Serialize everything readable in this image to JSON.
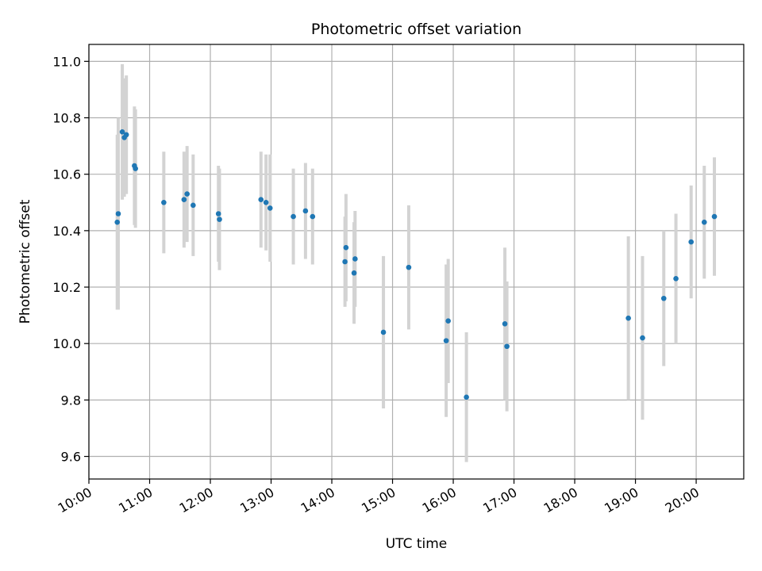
{
  "chart_data": {
    "type": "scatter",
    "title": "Photometric offset variation",
    "xlabel": "UTC time",
    "ylabel": "Photometric offset",
    "xlim": [
      "10:00",
      "20:47"
    ],
    "ylim": [
      9.52,
      11.06
    ],
    "grid": true,
    "legend": "none",
    "x_ticks": [
      "10:00",
      "11:00",
      "12:00",
      "13:00",
      "14:00",
      "15:00",
      "16:00",
      "17:00",
      "18:00",
      "19:00",
      "20:00"
    ],
    "y_ticks": [
      "9.6",
      "9.8",
      "10.0",
      "10.2",
      "10.4",
      "10.6",
      "10.8",
      "11.0"
    ],
    "series": [
      {
        "marker_color": "#1f77b4",
        "errorbar_color": "#d3d3d3",
        "points": [
          {
            "x": "10:28",
            "y": 10.43,
            "err": 0.31
          },
          {
            "x": "10:29",
            "y": 10.46,
            "err": 0.34
          },
          {
            "x": "10:33",
            "y": 10.75,
            "err": 0.24
          },
          {
            "x": "10:35",
            "y": 10.73,
            "err": 0.21
          },
          {
            "x": "10:37",
            "y": 10.74,
            "err": 0.21
          },
          {
            "x": "10:45",
            "y": 10.63,
            "err": 0.21
          },
          {
            "x": "10:46",
            "y": 10.62,
            "err": 0.21
          },
          {
            "x": "11:14",
            "y": 10.5,
            "err": 0.18
          },
          {
            "x": "11:34",
            "y": 10.51,
            "err": 0.17
          },
          {
            "x": "11:37",
            "y": 10.53,
            "err": 0.17
          },
          {
            "x": "11:43",
            "y": 10.49,
            "err": 0.18
          },
          {
            "x": "12:08",
            "y": 10.46,
            "err": 0.17
          },
          {
            "x": "12:09",
            "y": 10.44,
            "err": 0.18
          },
          {
            "x": "12:50",
            "y": 10.51,
            "err": 0.17
          },
          {
            "x": "12:55",
            "y": 10.5,
            "err": 0.17
          },
          {
            "x": "12:59",
            "y": 10.48,
            "err": 0.19
          },
          {
            "x": "13:22",
            "y": 10.45,
            "err": 0.17
          },
          {
            "x": "13:34",
            "y": 10.47,
            "err": 0.17
          },
          {
            "x": "13:41",
            "y": 10.45,
            "err": 0.17
          },
          {
            "x": "14:13",
            "y": 10.29,
            "err": 0.16
          },
          {
            "x": "14:14",
            "y": 10.34,
            "err": 0.19
          },
          {
            "x": "14:22",
            "y": 10.25,
            "err": 0.18
          },
          {
            "x": "14:23",
            "y": 10.3,
            "err": 0.17
          },
          {
            "x": "14:51",
            "y": 10.04,
            "err": 0.27
          },
          {
            "x": "15:16",
            "y": 10.27,
            "err": 0.22
          },
          {
            "x": "15:53",
            "y": 10.01,
            "err": 0.27
          },
          {
            "x": "15:55",
            "y": 10.08,
            "err": 0.22
          },
          {
            "x": "16:13",
            "y": 9.81,
            "err": 0.23
          },
          {
            "x": "16:51",
            "y": 10.07,
            "err": 0.27
          },
          {
            "x": "16:53",
            "y": 9.99,
            "err": 0.23
          },
          {
            "x": "18:53",
            "y": 10.09,
            "err": 0.29
          },
          {
            "x": "19:07",
            "y": 10.02,
            "err": 0.29
          },
          {
            "x": "19:28",
            "y": 10.16,
            "err": 0.24
          },
          {
            "x": "19:40",
            "y": 10.23,
            "err": 0.23
          },
          {
            "x": "19:55",
            "y": 10.36,
            "err": 0.2
          },
          {
            "x": "20:08",
            "y": 10.43,
            "err": 0.2
          },
          {
            "x": "20:18",
            "y": 10.45,
            "err": 0.21
          }
        ]
      }
    ]
  }
}
